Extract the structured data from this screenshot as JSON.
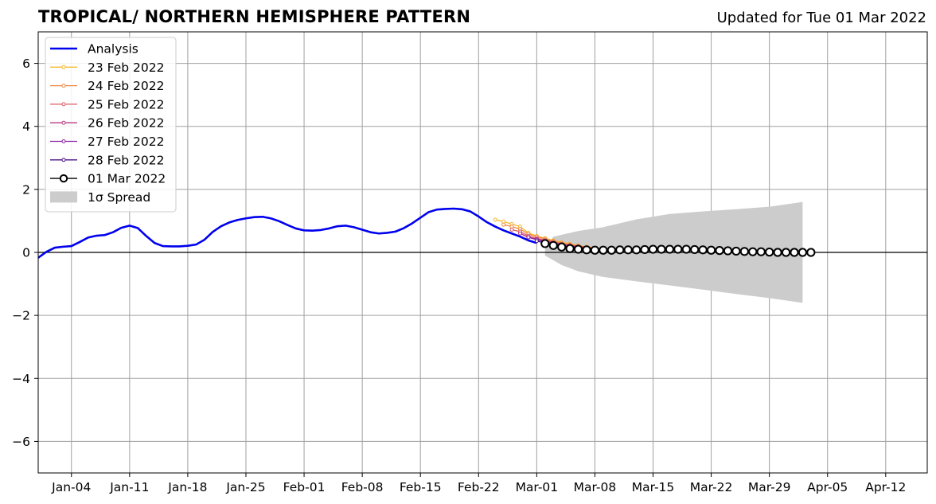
{
  "header": {
    "title": "TROPICAL/ NORTHERN HEMISPHERE PATTERN",
    "updated": "Updated for Tue 01 Mar 2022"
  },
  "chart_data": {
    "type": "line",
    "x_unit": "date",
    "x_range": [
      "2021-12-31",
      "2022-04-17"
    ],
    "ylim": [
      -7,
      7
    ],
    "grid": true,
    "legend_position": "upper-left",
    "x_ticks": [
      {
        "date": "2022-01-04",
        "label": "Jan-04"
      },
      {
        "date": "2022-01-11",
        "label": "Jan-11"
      },
      {
        "date": "2022-01-18",
        "label": "Jan-18"
      },
      {
        "date": "2022-01-25",
        "label": "Jan-25"
      },
      {
        "date": "2022-02-01",
        "label": "Feb-01"
      },
      {
        "date": "2022-02-08",
        "label": "Feb-08"
      },
      {
        "date": "2022-02-15",
        "label": "Feb-15"
      },
      {
        "date": "2022-02-22",
        "label": "Feb-22"
      },
      {
        "date": "2022-03-01",
        "label": "Mar-01"
      },
      {
        "date": "2022-03-08",
        "label": "Mar-08"
      },
      {
        "date": "2022-03-15",
        "label": "Mar-15"
      },
      {
        "date": "2022-03-22",
        "label": "Mar-22"
      },
      {
        "date": "2022-03-29",
        "label": "Mar-29"
      },
      {
        "date": "2022-04-05",
        "label": "Apr-05"
      },
      {
        "date": "2022-04-12",
        "label": "Apr-12"
      }
    ],
    "y_ticks": [
      {
        "value": -6,
        "label": "−6"
      },
      {
        "value": -4,
        "label": "−4"
      },
      {
        "value": -2,
        "label": "−2"
      },
      {
        "value": 0,
        "label": "0"
      },
      {
        "value": 2,
        "label": "2"
      },
      {
        "value": 4,
        "label": "4"
      },
      {
        "value": 6,
        "label": "6"
      }
    ],
    "analysis": {
      "name": "Analysis",
      "color": "#0000ee",
      "start_date": "2021-12-31",
      "values": [
        -0.17,
        0.02,
        0.15,
        0.18,
        0.2,
        0.33,
        0.47,
        0.53,
        0.55,
        0.64,
        0.78,
        0.85,
        0.77,
        0.52,
        0.3,
        0.2,
        0.19,
        0.19,
        0.21,
        0.25,
        0.4,
        0.65,
        0.83,
        0.95,
        1.03,
        1.08,
        1.12,
        1.13,
        1.08,
        0.99,
        0.87,
        0.76,
        0.7,
        0.69,
        0.71,
        0.76,
        0.83,
        0.85,
        0.8,
        0.72,
        0.64,
        0.6,
        0.62,
        0.66,
        0.77,
        0.92,
        1.1,
        1.28,
        1.36,
        1.38,
        1.39,
        1.37,
        1.3,
        1.14,
        0.96,
        0.82,
        0.7,
        0.6,
        0.5,
        0.38,
        0.3
      ]
    },
    "forecasts": [
      {
        "name": "23 Feb 2022",
        "color": "#f5b72b",
        "start_date": "2022-02-24",
        "values": [
          1.04,
          0.98,
          0.9,
          0.82,
          0.62,
          0.52,
          0.45,
          0.38,
          0.32,
          0.27,
          0.22,
          0.18,
          0.15
        ]
      },
      {
        "name": "24 Feb 2022",
        "color": "#ee8a45",
        "start_date": "2022-02-25",
        "values": [
          0.88,
          0.82,
          0.74,
          0.58,
          0.5,
          0.43,
          0.36,
          0.3,
          0.25,
          0.21,
          0.17,
          0.14
        ]
      },
      {
        "name": "25 Feb 2022",
        "color": "#dc5a66",
        "start_date": "2022-02-26",
        "values": [
          0.72,
          0.66,
          0.52,
          0.45,
          0.39,
          0.33,
          0.27,
          0.23,
          0.19,
          0.15,
          0.12
        ]
      },
      {
        "name": "26 Feb 2022",
        "color": "#b53880",
        "start_date": "2022-02-27",
        "values": [
          0.6,
          0.48,
          0.42,
          0.36,
          0.3,
          0.25,
          0.21,
          0.17,
          0.13,
          0.11
        ]
      },
      {
        "name": "27 Feb 2022",
        "color": "#8a1ea2",
        "start_date": "2022-02-28",
        "values": [
          0.48,
          0.4,
          0.34,
          0.28,
          0.22,
          0.18,
          0.15,
          0.12,
          0.1
        ]
      },
      {
        "name": "28 Feb 2022",
        "color": "#4a1087",
        "start_date": "2022-03-01",
        "values": [
          0.36,
          0.3,
          0.24,
          0.19,
          0.15,
          0.12,
          0.1
        ]
      }
    ],
    "current_forecast": {
      "name": "01 Mar 2022",
      "color": "#000000",
      "start_date": "2022-03-02",
      "values": [
        0.28,
        0.22,
        0.17,
        0.12,
        0.1,
        0.08,
        0.07,
        0.07,
        0.07,
        0.08,
        0.08,
        0.08,
        0.09,
        0.1,
        0.1,
        0.1,
        0.1,
        0.1,
        0.09,
        0.08,
        0.07,
        0.06,
        0.05,
        0.04,
        0.03,
        0.02,
        0.02,
        0.01,
        0.0,
        0.0,
        0.0,
        0.0,
        0.0
      ]
    },
    "spread": {
      "name": "1σ Spread",
      "color": "#cccccc",
      "upper": [
        [
          1,
          0.1
        ],
        [
          2,
          0.5
        ],
        [
          5,
          0.68
        ],
        [
          8,
          0.8
        ],
        [
          12,
          1.05
        ],
        [
          16,
          1.22
        ],
        [
          20,
          1.3
        ],
        [
          24,
          1.37
        ],
        [
          28,
          1.45
        ],
        [
          32,
          1.6
        ]
      ],
      "lower": [
        [
          1,
          -0.1
        ],
        [
          2,
          -0.25
        ],
        [
          3,
          -0.4
        ],
        [
          5,
          -0.6
        ],
        [
          8,
          -0.78
        ],
        [
          12,
          -0.92
        ],
        [
          16,
          -1.05
        ],
        [
          20,
          -1.18
        ],
        [
          24,
          -1.32
        ],
        [
          28,
          -1.45
        ],
        [
          32,
          -1.6
        ]
      ]
    },
    "spread_day_reference": "2022-03-01"
  }
}
